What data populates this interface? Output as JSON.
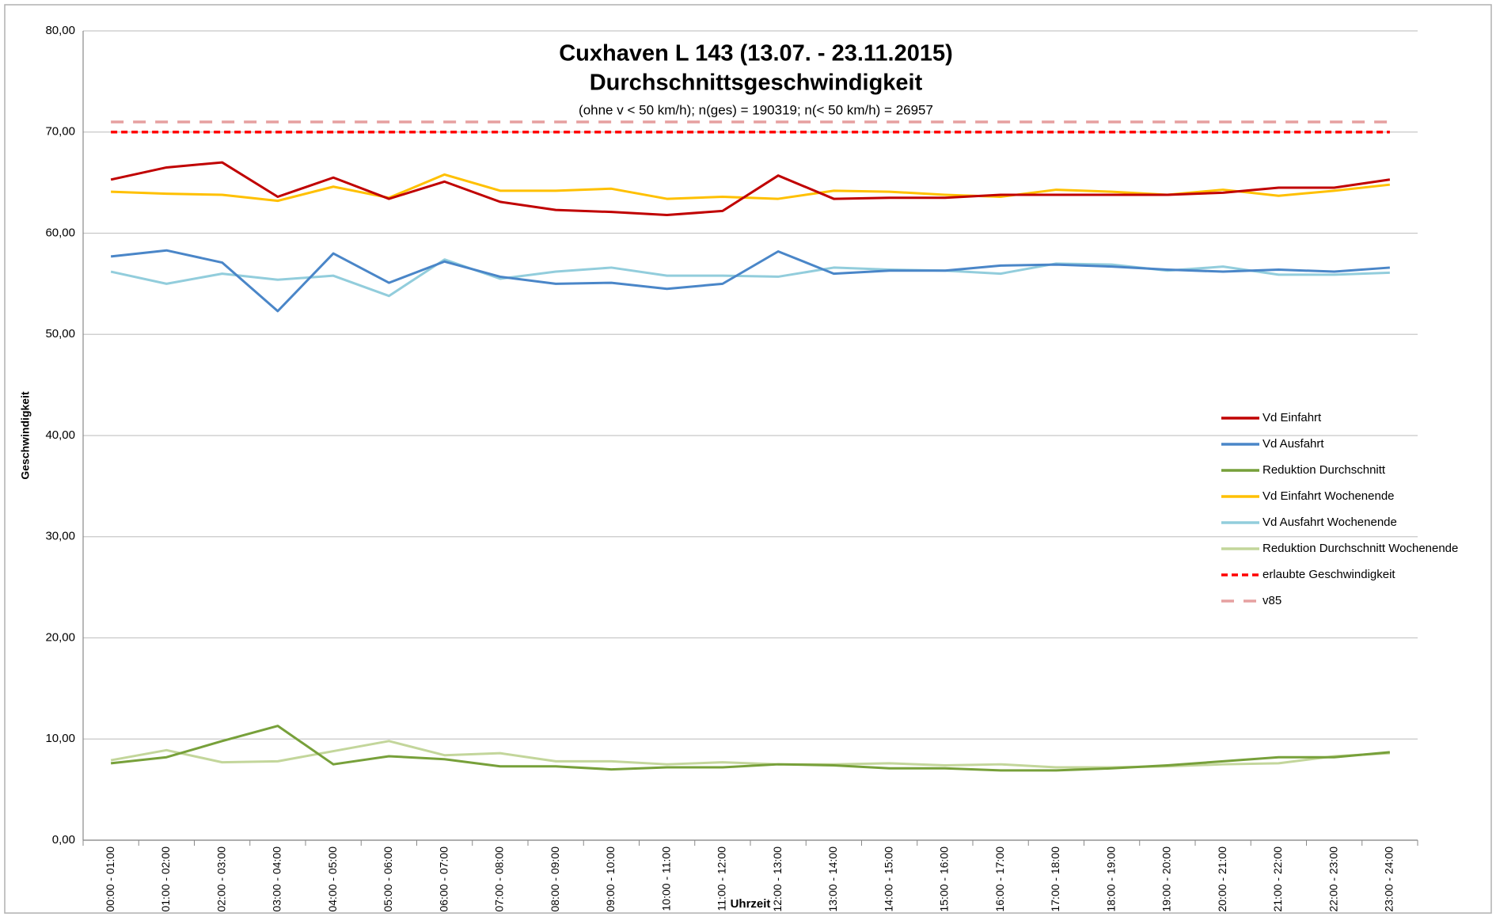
{
  "chart_data": {
    "type": "line",
    "title": "Cuxhaven L 143 (13.07. - 23.11.2015)",
    "subtitle": "Durchschnittsgeschwindigkeit",
    "annotation": "(ohne v < 50 km/h); n(ges) = 190319; n(< 50 km/h) = 26957",
    "x_label": "Uhrzeit",
    "y_label": "Geschwindigkeit",
    "categories": [
      "00:00 - 01:00",
      "01:00 - 02:00",
      "02:00 - 03:00",
      "03:00 - 04:00",
      "04:00 - 05:00",
      "05:00 - 06:00",
      "06:00 - 07:00",
      "07:00 - 08:00",
      "08:00 - 09:00",
      "09:00 - 10:00",
      "10:00 - 11:00",
      "11:00 - 12:00",
      "12:00 - 13:00",
      "13:00 - 14:00",
      "14:00 - 15:00",
      "15:00 - 16:00",
      "16:00 - 17:00",
      "17:00 - 18:00",
      "18:00 - 19:00",
      "19:00 - 20:00",
      "20:00 - 21:00",
      "21:00 - 22:00",
      "22:00 - 23:00",
      "23:00 - 24:00"
    ],
    "series": [
      {
        "name": "Vd Einfahrt",
        "color": "#c00000",
        "values": [
          65.3,
          66.5,
          67.0,
          63.6,
          65.5,
          63.4,
          65.1,
          63.1,
          62.3,
          62.1,
          61.8,
          62.2,
          65.7,
          63.4,
          63.5,
          63.5,
          63.8,
          63.8,
          63.8,
          63.8,
          64.0,
          64.5,
          64.5,
          65.3
        ]
      },
      {
        "name": "Vd Ausfahrt",
        "color": "#4a86c8",
        "values": [
          57.7,
          58.3,
          57.1,
          52.3,
          58.0,
          55.1,
          57.2,
          55.7,
          55.0,
          55.1,
          54.5,
          55.0,
          58.2,
          56.0,
          56.3,
          56.3,
          56.8,
          56.9,
          56.7,
          56.4,
          56.2,
          56.4,
          56.2,
          56.6
        ]
      },
      {
        "name": "Reduktion Durchschnitt",
        "color": "#77a03a",
        "values": [
          7.6,
          8.2,
          9.8,
          11.3,
          7.5,
          8.3,
          8.0,
          7.3,
          7.3,
          7.0,
          7.2,
          7.2,
          7.5,
          7.4,
          7.1,
          7.1,
          6.9,
          6.9,
          7.1,
          7.4,
          7.8,
          8.2,
          8.2,
          8.7
        ]
      },
      {
        "name": "Vd Einfahrt Wochenende",
        "color": "#ffc000",
        "values": [
          64.1,
          63.9,
          63.8,
          63.2,
          64.6,
          63.5,
          65.8,
          64.2,
          64.2,
          64.4,
          63.4,
          63.6,
          63.4,
          64.2,
          64.1,
          63.8,
          63.6,
          64.3,
          64.1,
          63.8,
          64.3,
          63.7,
          64.2,
          64.8
        ]
      },
      {
        "name": "Vd Ausfahrt Wochenende",
        "color": "#92cddc",
        "values": [
          56.2,
          55.0,
          56.0,
          55.4,
          55.8,
          53.8,
          57.4,
          55.5,
          56.2,
          56.6,
          55.8,
          55.8,
          55.7,
          56.6,
          56.4,
          56.3,
          56.0,
          57.0,
          56.9,
          56.3,
          56.7,
          55.9,
          55.9,
          56.1
        ]
      },
      {
        "name": "Reduktion Durchschnitt Wochenende",
        "color": "#c3d69b",
        "values": [
          7.9,
          8.9,
          7.7,
          7.8,
          8.8,
          9.8,
          8.4,
          8.6,
          7.8,
          7.8,
          7.5,
          7.7,
          7.5,
          7.5,
          7.6,
          7.4,
          7.5,
          7.2,
          7.2,
          7.3,
          7.5,
          7.6,
          8.3,
          8.6
        ]
      },
      {
        "name": "erlaubte Geschwindigkeit",
        "color": "#ff0000",
        "dash": "short",
        "values": [
          70,
          70,
          70,
          70,
          70,
          70,
          70,
          70,
          70,
          70,
          70,
          70,
          70,
          70,
          70,
          70,
          70,
          70,
          70,
          70,
          70,
          70,
          70,
          70
        ]
      },
      {
        "name": "v85",
        "color": "#e6a0a0",
        "dash": "long",
        "values": [
          71,
          71,
          71,
          71,
          71,
          71,
          71,
          71,
          71,
          71,
          71,
          71,
          71,
          71,
          71,
          71,
          71,
          71,
          71,
          71,
          71,
          71,
          71,
          71
        ]
      }
    ],
    "ylim": [
      0,
      80
    ],
    "yticks": [
      {
        "value": 0,
        "label": "0,00"
      },
      {
        "value": 10,
        "label": "10,00"
      },
      {
        "value": 20,
        "label": "20,00"
      },
      {
        "value": 30,
        "label": "30,00"
      },
      {
        "value": 40,
        "label": "40,00"
      },
      {
        "value": 50,
        "label": "50,00"
      },
      {
        "value": 60,
        "label": "60,00"
      },
      {
        "value": 70,
        "label": "70,00"
      },
      {
        "value": 80,
        "label": "80,00"
      }
    ],
    "grid": true,
    "legend": "right"
  }
}
